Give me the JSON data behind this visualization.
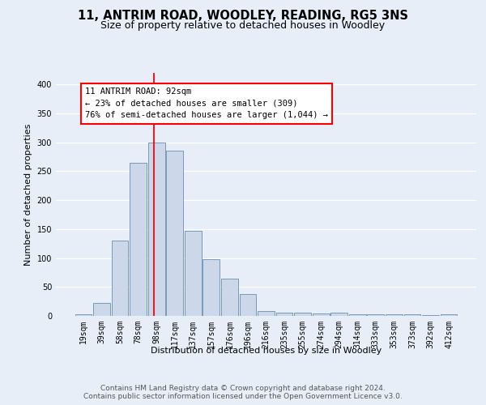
{
  "title": "11, ANTRIM ROAD, WOODLEY, READING, RG5 3NS",
  "subtitle": "Size of property relative to detached houses in Woodley",
  "xlabel": "Distribution of detached houses by size in Woodley",
  "ylabel": "Number of detached properties",
  "footer_line1": "Contains HM Land Registry data © Crown copyright and database right 2024.",
  "footer_line2": "Contains public sector information licensed under the Open Government Licence v3.0.",
  "bar_labels": [
    "19sqm",
    "39sqm",
    "58sqm",
    "78sqm",
    "98sqm",
    "117sqm",
    "137sqm",
    "157sqm",
    "176sqm",
    "196sqm",
    "216sqm",
    "235sqm",
    "255sqm",
    "274sqm",
    "294sqm",
    "314sqm",
    "333sqm",
    "353sqm",
    "373sqm",
    "392sqm",
    "412sqm"
  ],
  "bar_values": [
    3,
    22,
    130,
    264,
    300,
    285,
    147,
    98,
    65,
    38,
    8,
    5,
    5,
    4,
    5,
    3,
    3,
    3,
    3,
    1,
    3
  ],
  "bar_color": "#ccd8ea",
  "bar_edgecolor": "#7799bb",
  "background_color": "#e8eef8",
  "annotation_line1": "11 ANTRIM ROAD: 92sqm",
  "annotation_line2": "← 23% of detached houses are smaller (309)",
  "annotation_line3": "76% of semi-detached houses are larger (1,044) →",
  "red_line_x": 3.85,
  "ylim_max": 420,
  "yticks": [
    0,
    50,
    100,
    150,
    200,
    250,
    300,
    350,
    400
  ],
  "grid_color": "#ffffff",
  "title_fontsize": 10.5,
  "subtitle_fontsize": 9,
  "axis_label_fontsize": 8,
  "tick_fontsize": 7,
  "footer_fontsize": 6.5,
  "annot_fontsize": 7.5
}
